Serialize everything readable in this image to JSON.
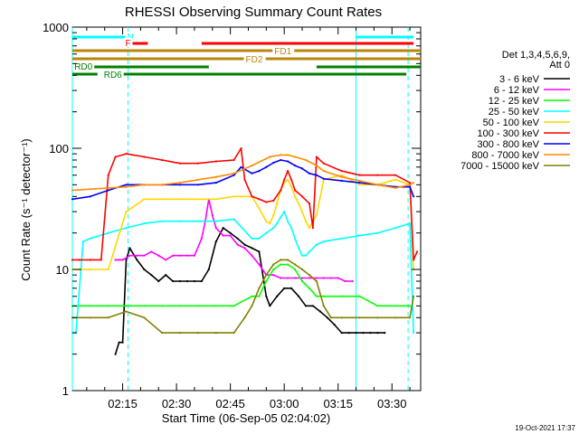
{
  "chart_data": {
    "type": "line",
    "title": "RHESSI Observing Summary Count Rates",
    "xlabel": "Start Time (06-Sep-05 02:04:02)",
    "ylabel": "Count Rate (s⁻¹ detector⁻¹)",
    "yscale": "log",
    "ylim": [
      1,
      1000
    ],
    "xlim_minutes": [
      0,
      97
    ],
    "y_ticks": [
      {
        "value": 1,
        "label": "1"
      },
      {
        "value": 10,
        "label": "10"
      },
      {
        "value": 100,
        "label": "100"
      },
      {
        "value": 1000,
        "label": "1000"
      }
    ],
    "x_ticks": [
      {
        "minute": 14,
        "label": "02:15"
      },
      {
        "minute": 29,
        "label": "02:30"
      },
      {
        "minute": 44,
        "label": "02:45"
      },
      {
        "minute": 59,
        "label": "03:00"
      },
      {
        "minute": 74,
        "label": "03:15"
      },
      {
        "minute": 89,
        "label": "03:30"
      }
    ],
    "legend_header": [
      "Det 1,3,4,5,6,9,",
      "Att 0"
    ],
    "footer_date": "19-Oct-2021 17:37",
    "series": [
      {
        "name": "3 - 6 keV",
        "color": "#000000",
        "x": [
          12,
          13,
          14,
          15,
          16,
          18,
          20,
          22,
          24,
          26,
          28,
          30,
          32,
          34,
          36,
          38,
          40,
          42,
          44,
          46,
          48,
          50,
          52,
          54,
          55,
          57,
          59,
          61,
          63,
          65,
          67,
          69,
          71,
          73,
          75,
          77,
          79,
          81,
          83,
          85,
          87
        ],
        "y": [
          2,
          2.5,
          2.5,
          12,
          15,
          12,
          10,
          9,
          8,
          9,
          8,
          8,
          8,
          8,
          8,
          10,
          17,
          22,
          20,
          18,
          16,
          15,
          14,
          6,
          5,
          6,
          7,
          7,
          6,
          5,
          5,
          4.5,
          4,
          3.5,
          3,
          3,
          3,
          3,
          3,
          3,
          3
        ]
      },
      {
        "name": "6 - 12 keV",
        "color": "#ff00ff",
        "x": [
          12,
          13,
          14,
          16,
          18,
          20,
          22,
          24,
          26,
          28,
          30,
          32,
          34,
          36,
          37,
          38,
          39,
          40,
          42,
          44,
          46,
          48,
          50,
          52,
          54,
          56,
          58,
          60,
          62,
          64,
          66,
          68,
          70,
          72,
          74,
          76,
          78
        ],
        "y": [
          12,
          12,
          12,
          13,
          13,
          13,
          14,
          13,
          12,
          13,
          13,
          13,
          13,
          18,
          25,
          38,
          28,
          22,
          19,
          19,
          16,
          15,
          13,
          11,
          9,
          9,
          8.5,
          8.5,
          8.5,
          8.5,
          8.5,
          8.5,
          8.5,
          8.5,
          8.5,
          8,
          8
        ]
      },
      {
        "name": "12 - 25 keV",
        "color": "#00ff00",
        "x": [
          0,
          5,
          10,
          15,
          20,
          25,
          30,
          35,
          40,
          45,
          50,
          52,
          54,
          56,
          58,
          60,
          62,
          64,
          66,
          68,
          70,
          75,
          80,
          85,
          90,
          94
        ],
        "y": [
          5,
          5,
          5,
          5,
          5,
          5,
          5,
          5,
          5,
          5,
          6,
          6,
          8,
          10,
          11,
          11,
          10,
          8,
          7,
          6,
          6,
          6,
          6,
          5,
          5,
          5
        ]
      },
      {
        "name": "25 - 50 keV",
        "color": "#00ffff",
        "x": [
          0,
          1,
          3,
          5,
          10,
          15,
          20,
          25,
          30,
          35,
          40,
          45,
          50,
          52,
          54,
          56,
          57,
          58,
          59,
          60,
          61,
          62,
          63,
          64,
          65,
          66,
          68,
          70,
          75,
          80,
          85,
          90,
          94,
          95
        ],
        "y": [
          3,
          3,
          17,
          18,
          20,
          22,
          24,
          25,
          25,
          25,
          25,
          26,
          18,
          18,
          20,
          22,
          24,
          27,
          30,
          25,
          22,
          18,
          15,
          13,
          13,
          14,
          16,
          17,
          18,
          19,
          20,
          22,
          24,
          3
        ]
      },
      {
        "name": "50 - 100 keV",
        "color": "#ffd700",
        "x": [
          0,
          2,
          5,
          10,
          15,
          20,
          25,
          30,
          35,
          40,
          45,
          50,
          52,
          54,
          55,
          56,
          57,
          58,
          59,
          60,
          61,
          62,
          63,
          64,
          65,
          66,
          68,
          70,
          75,
          80,
          85,
          90,
          94,
          95
        ],
        "y": [
          10,
          10,
          10,
          10,
          30,
          38,
          38,
          38,
          38,
          38,
          40,
          40,
          32,
          25,
          24,
          28,
          35,
          45,
          52,
          55,
          48,
          40,
          35,
          30,
          25,
          22,
          28,
          55,
          60,
          50,
          50,
          55,
          50,
          10
        ]
      },
      {
        "name": "100 - 300 keV",
        "color": "#ff0000",
        "x": [
          0,
          2,
          5,
          8,
          10,
          12,
          15,
          20,
          25,
          30,
          35,
          40,
          45,
          47,
          48,
          50,
          52,
          54,
          56,
          58,
          59,
          60,
          61,
          62,
          64,
          66,
          67,
          68,
          70,
          75,
          80,
          85,
          90,
          94,
          95,
          96
        ],
        "y": [
          12,
          12,
          12,
          12,
          60,
          85,
          90,
          85,
          80,
          75,
          75,
          78,
          80,
          100,
          55,
          40,
          38,
          36,
          37,
          45,
          55,
          65,
          55,
          45,
          40,
          35,
          22,
          85,
          75,
          65,
          60,
          60,
          60,
          52,
          12,
          14
        ]
      },
      {
        "name": "300 - 800 keV",
        "color": "#0000ff",
        "x": [
          0,
          5,
          10,
          15,
          20,
          25,
          30,
          35,
          40,
          45,
          47,
          50,
          52,
          54,
          56,
          58,
          60,
          62,
          64,
          66,
          68,
          70,
          75,
          80,
          85,
          90,
          94,
          95
        ],
        "y": [
          38,
          40,
          45,
          50,
          50,
          50,
          50,
          50,
          52,
          60,
          70,
          62,
          65,
          70,
          76,
          80,
          78,
          72,
          68,
          62,
          60,
          56,
          54,
          52,
          50,
          48,
          48,
          40
        ]
      },
      {
        "name": "800 - 7000 keV",
        "color": "#ff8c00",
        "x": [
          0,
          5,
          10,
          15,
          20,
          25,
          30,
          35,
          40,
          45,
          50,
          55,
          58,
          60,
          62,
          65,
          68,
          70,
          75,
          80,
          85,
          90,
          94,
          95
        ],
        "y": [
          45,
          46,
          47,
          48,
          50,
          50,
          52,
          55,
          58,
          62,
          72,
          85,
          88,
          88,
          85,
          80,
          72,
          65,
          58,
          54,
          50,
          47,
          50,
          52
        ]
      },
      {
        "name": "7000 - 15000 keV",
        "color": "#808000",
        "x": [
          0,
          5,
          10,
          15,
          20,
          25,
          30,
          35,
          40,
          45,
          48,
          50,
          52,
          54,
          56,
          58,
          60,
          62,
          64,
          66,
          68,
          70,
          72,
          75,
          80,
          85,
          90,
          94,
          95
        ],
        "y": [
          4,
          4,
          4,
          4.5,
          4,
          3,
          3,
          3,
          3,
          3,
          4,
          5,
          7,
          9,
          11,
          12,
          12,
          11,
          10,
          9,
          8,
          5,
          4,
          4,
          4,
          4,
          4,
          4,
          6
        ]
      }
    ],
    "state_bars": [
      {
        "label": "N",
        "color": "#00ffff",
        "label_minute": 15,
        "segments": [
          [
            0,
            15
          ],
          [
            79,
            95
          ]
        ]
      },
      {
        "label": "F",
        "color": "#ff0000",
        "label_minute": 14.5,
        "segments": [
          [
            16,
            21
          ],
          [
            36,
            79
          ],
          [
            79,
            95
          ]
        ]
      },
      {
        "label": "FD1",
        "color": "#b8860b",
        "label_minute": 56,
        "segments": [
          [
            0,
            54
          ],
          [
            54,
            97
          ]
        ]
      },
      {
        "label": "FD2",
        "color": "#b8860b",
        "label_minute": 48,
        "segments": [
          [
            0,
            54
          ],
          [
            54,
            97
          ]
        ]
      },
      {
        "label": "RD0",
        "color": "#008000",
        "label_minute": 0.3,
        "segments": [
          [
            0,
            38
          ],
          [
            68,
            97
          ]
        ]
      },
      {
        "label": "RD6",
        "color": "#008000",
        "label_minute": 8.5,
        "segments": [
          [
            0,
            7
          ],
          [
            13,
            47
          ],
          [
            47,
            64
          ],
          [
            64,
            93
          ]
        ]
      }
    ],
    "vertical_markers": [
      {
        "minute": 0,
        "style": "solid",
        "color": "#00ffff"
      },
      {
        "minute": 15.5,
        "style": "dashed",
        "color": "#00ffff"
      },
      {
        "minute": 79,
        "style": "solid",
        "color": "#00ffff"
      },
      {
        "minute": 93.5,
        "style": "dashed",
        "color": "#00ffff"
      }
    ]
  }
}
